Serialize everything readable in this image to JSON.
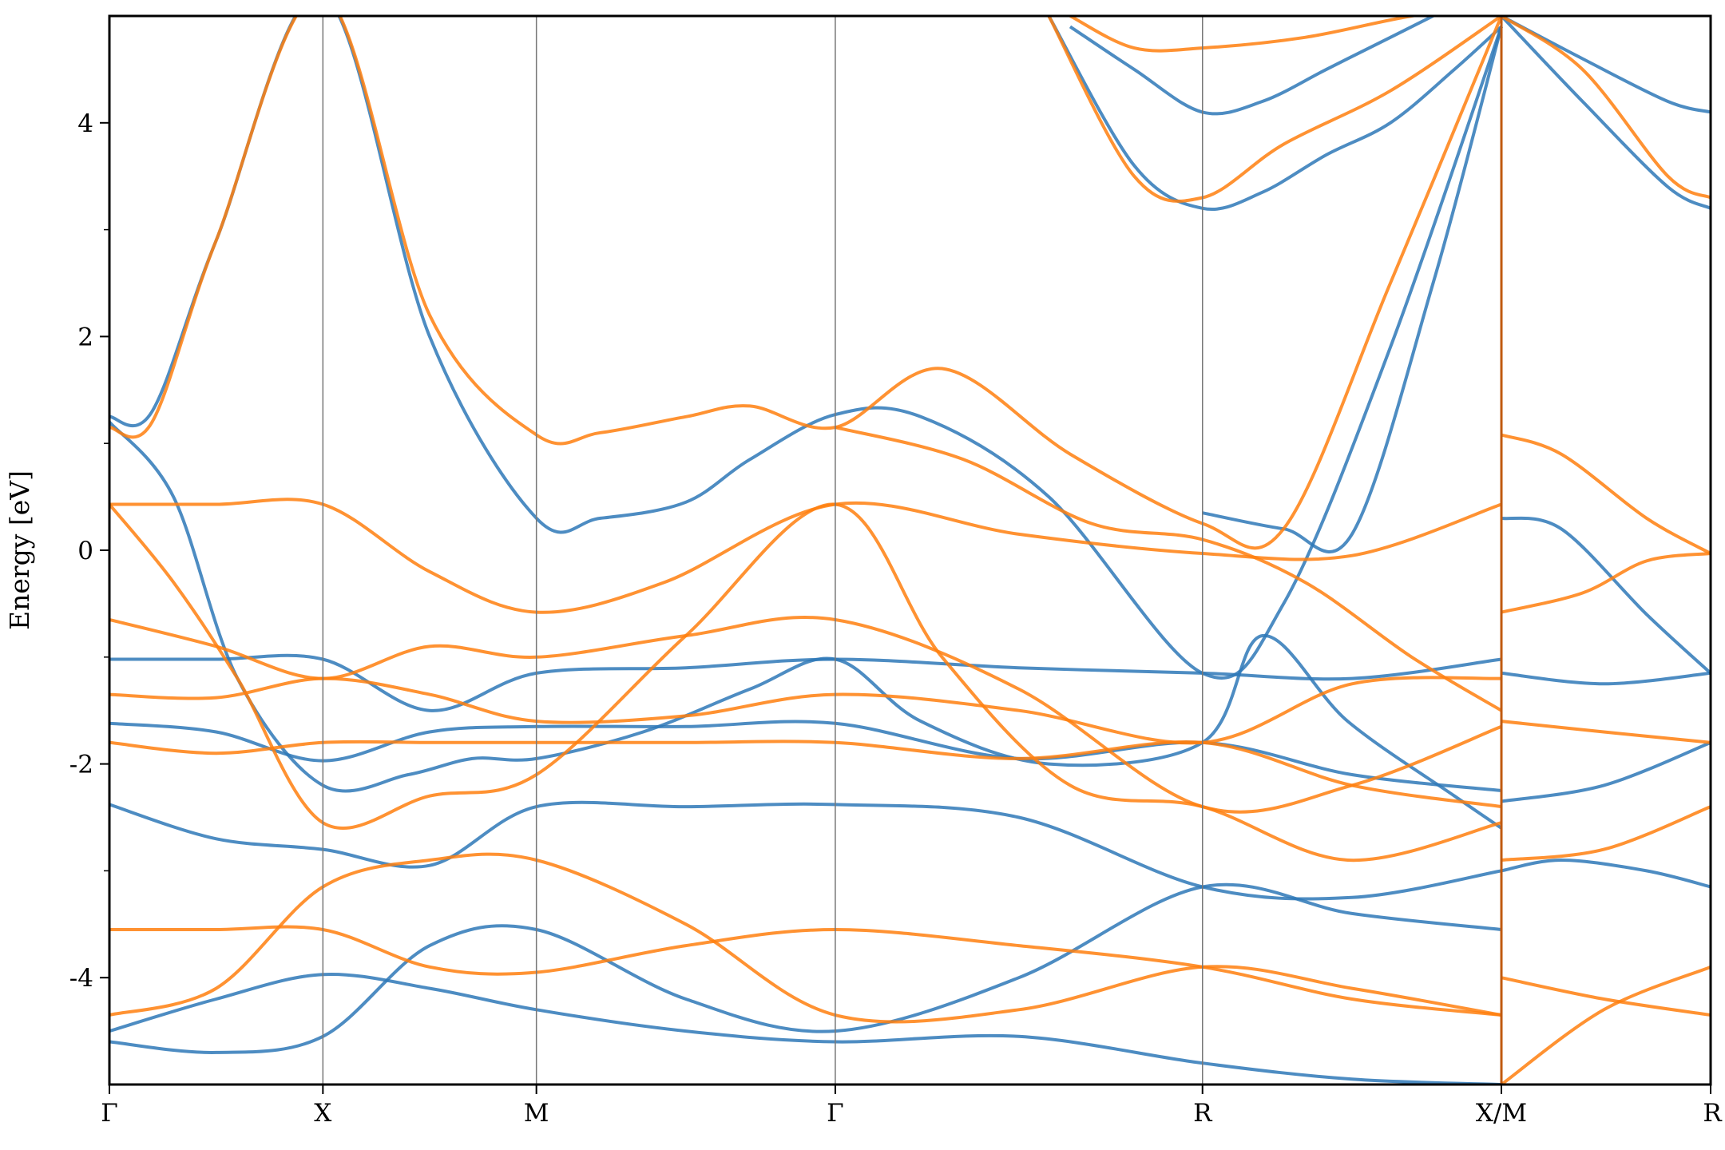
{
  "chart_data": {
    "type": "line",
    "title": "",
    "xlabel": "",
    "ylabel": "Energy [eV]",
    "ylim": [
      -5,
      5
    ],
    "xlim": [
      0,
      7.5
    ],
    "y_ticks": [
      -4,
      -2,
      0,
      2,
      4
    ],
    "y_tick_labels": [
      "-4",
      "-2",
      "0",
      "2",
      "4"
    ],
    "y_minor_ticks": [
      -3,
      -1,
      1,
      3
    ],
    "k_points": [
      {
        "label": "Γ",
        "x": 0.0
      },
      {
        "label": "X",
        "x": 1.0
      },
      {
        "label": "M",
        "x": 2.0
      },
      {
        "label": "Γ",
        "x": 3.4
      },
      {
        "label": "R",
        "x": 5.12
      },
      {
        "label": "X/M",
        "x": 6.52
      },
      {
        "label": "R",
        "x": 7.5
      }
    ],
    "grid": false,
    "legend": "none",
    "colors": {
      "blue": "#2e78b7",
      "orange": "#ff7f0e"
    },
    "series": [
      {
        "color": "blue",
        "x": [
          0,
          0.5,
          1,
          1.5,
          2,
          2.7,
          3.4,
          4.26,
          5.12,
          5.82,
          6.52
        ],
        "y": [
          -2.38,
          -2.7,
          -2.8,
          -2.95,
          -2.4,
          -2.4,
          -2.38,
          -2.5,
          -3.15,
          -3.25,
          -3.0
        ]
      },
      {
        "color": "blue",
        "x": [
          0,
          0.5,
          1,
          1.5,
          2,
          2.7,
          3.4,
          4.26,
          5.12,
          5.82,
          6.52
        ],
        "y": [
          -1.02,
          -1.02,
          -1.02,
          -1.5,
          -1.15,
          -1.1,
          -1.02,
          -1.1,
          -1.15,
          -1.2,
          -1.02
        ]
      },
      {
        "color": "blue",
        "x": [
          0,
          0.5,
          1,
          1.5,
          2,
          2.7,
          3.4,
          4.26,
          5.12,
          5.82,
          6.52
        ],
        "y": [
          -1.62,
          -1.7,
          -1.97,
          -1.7,
          -1.65,
          -1.65,
          -1.62,
          -1.95,
          -1.8,
          -2.1,
          -2.25
        ]
      },
      {
        "color": "blue",
        "x": [
          0,
          0.5,
          1,
          1.5,
          2,
          2.7,
          3.4,
          4.26,
          5.12,
          5.82,
          6.52
        ],
        "y": [
          -4.5,
          -4.2,
          -3.97,
          -4.1,
          -4.3,
          -4.5,
          -4.6,
          -4.55,
          -4.8,
          -4.95,
          -5.0
        ]
      },
      {
        "color": "blue",
        "x": [
          0,
          0.5,
          1,
          1.5,
          2,
          2.7,
          3.4,
          4.26,
          5.12,
          5.82,
          6.52
        ],
        "y": [
          -4.6,
          -4.7,
          -4.55,
          -3.7,
          -3.55,
          -4.2,
          -4.5,
          -4.0,
          -3.15,
          -3.4,
          -3.55
        ]
      },
      {
        "color": "blue",
        "x": [
          0,
          0.2,
          0.5,
          1,
          1.5,
          2,
          2.3,
          2.7,
          3.0,
          3.4,
          3.8,
          4.4,
          5.12,
          5.5,
          6.0,
          6.52
        ],
        "y": [
          1.25,
          1.3,
          2.9,
          5.2,
          2.0,
          0.3,
          0.3,
          0.45,
          0.85,
          1.27,
          1.25,
          0.5,
          -1.15,
          -0.5,
          1.9,
          4.9
        ]
      },
      {
        "color": "blue",
        "x": [
          0,
          0.3,
          0.6,
          1,
          1.4,
          1.7,
          2,
          2.5,
          3.0,
          3.4,
          3.8,
          4.4,
          5.12,
          5.4,
          5.8,
          6.3,
          6.52
        ],
        "y": [
          1.2,
          0.5,
          -1.2,
          -2.2,
          -2.1,
          -1.95,
          -1.95,
          -1.7,
          -1.3,
          -1.02,
          -1.6,
          -2.0,
          -1.8,
          -0.8,
          -1.6,
          -2.3,
          -2.6
        ]
      },
      {
        "color": "blue",
        "x": [
          5.12,
          5.5,
          5.82,
          6.2,
          6.52
        ],
        "y": [
          0.35,
          0.2,
          0.15,
          2.5,
          4.9
        ]
      },
      {
        "color": "blue",
        "x": [
          4.5,
          4.8,
          5.12,
          5.4,
          5.7,
          6.0,
          6.2
        ],
        "y": [
          4.9,
          4.5,
          4.1,
          4.2,
          4.5,
          4.8,
          5.0
        ]
      },
      {
        "color": "blue",
        "x": [
          4.4,
          4.8,
          5.12,
          5.4,
          5.7,
          6.0,
          6.3,
          6.52
        ],
        "y": [
          5.0,
          3.6,
          3.2,
          3.35,
          3.7,
          4.0,
          4.5,
          4.9
        ]
      },
      {
        "color": "blue",
        "x": [
          6.52,
          6.8,
          7.2,
          7.5
        ],
        "y": [
          0.3,
          0.2,
          -0.6,
          -1.15
        ]
      },
      {
        "color": "blue",
        "x": [
          6.52,
          6.8,
          7.2,
          7.5
        ],
        "y": [
          -3.0,
          -2.9,
          -3.0,
          -3.15
        ]
      },
      {
        "color": "blue",
        "x": [
          6.52,
          7.0,
          7.5
        ],
        "y": [
          -2.35,
          -2.2,
          -1.8
        ]
      },
      {
        "color": "blue",
        "x": [
          6.52,
          7.0,
          7.5
        ],
        "y": [
          -1.15,
          -1.25,
          -1.15
        ]
      },
      {
        "color": "blue",
        "x": [
          6.52,
          6.9,
          7.3,
          7.5
        ],
        "y": [
          5.0,
          4.6,
          4.2,
          4.1
        ]
      },
      {
        "color": "blue",
        "x": [
          6.52,
          6.9,
          7.3,
          7.5
        ],
        "y": [
          5.0,
          4.2,
          3.4,
          3.2
        ]
      },
      {
        "color": "orange",
        "x": [
          0,
          0.5,
          1,
          1.5,
          2,
          2.7,
          3.4,
          4.26,
          5.12,
          5.82,
          6.52
        ],
        "y": [
          -1.35,
          -1.38,
          -1.2,
          -1.35,
          -1.6,
          -1.55,
          -1.35,
          -1.5,
          -1.8,
          -1.25,
          -1.2
        ]
      },
      {
        "color": "orange",
        "x": [
          0,
          0.5,
          1,
          1.5,
          2,
          2.7,
          3.4,
          4.26,
          5.12,
          5.82,
          6.52
        ],
        "y": [
          -1.8,
          -1.9,
          -1.8,
          -1.8,
          -1.8,
          -1.8,
          -1.8,
          -1.95,
          -1.8,
          -2.2,
          -2.4
        ]
      },
      {
        "color": "orange",
        "x": [
          0,
          0.5,
          1,
          1.5,
          2,
          2.7,
          3.4,
          4.26,
          5.12,
          5.82,
          6.52
        ],
        "y": [
          -3.55,
          -3.55,
          -3.55,
          -3.9,
          -3.95,
          -3.7,
          -3.55,
          -3.7,
          -3.9,
          -4.2,
          -4.35
        ]
      },
      {
        "color": "orange",
        "x": [
          0,
          0.5,
          1,
          1.5,
          2,
          2.7,
          3.4,
          4.26,
          5.12,
          5.82,
          6.52
        ],
        "y": [
          -4.35,
          -4.1,
          -3.15,
          -2.9,
          -2.9,
          -3.5,
          -4.35,
          -4.3,
          -3.9,
          -4.1,
          -4.35
        ]
      },
      {
        "color": "orange",
        "x": [
          0,
          0.5,
          1,
          1.5,
          2,
          2.7,
          3.4,
          4.26,
          5.12,
          5.82,
          6.52
        ],
        "y": [
          -0.65,
          -0.9,
          -1.2,
          -0.9,
          -1.0,
          -0.8,
          -0.65,
          -1.3,
          -2.4,
          -2.2,
          -1.65
        ]
      },
      {
        "color": "orange",
        "x": [
          0,
          0.5,
          1,
          1.5,
          2,
          2.6,
          3.4,
          4.26,
          5.12,
          5.82,
          6.52
        ],
        "y": [
          0.43,
          0.43,
          0.43,
          -0.2,
          -0.58,
          -0.3,
          0.43,
          0.15,
          -0.03,
          -0.05,
          0.43
        ]
      },
      {
        "color": "orange",
        "x": [
          0,
          0.3,
          0.6,
          1,
          1.5,
          2,
          2.7,
          3.4,
          3.9,
          4.5,
          5.12,
          5.8,
          6.52
        ],
        "y": [
          0.43,
          -0.3,
          -1.2,
          -2.55,
          -2.3,
          -2.1,
          -0.8,
          0.43,
          -1.0,
          -2.2,
          -2.4,
          -2.9,
          -2.55
        ]
      },
      {
        "color": "orange",
        "x": [
          0,
          0.2,
          0.5,
          1,
          1.5,
          2,
          2.3,
          2.7,
          3.0,
          3.4,
          3.9,
          4.5,
          5.12,
          5.5,
          6.0,
          6.52
        ],
        "y": [
          1.15,
          1.2,
          2.9,
          5.2,
          2.2,
          1.08,
          1.1,
          1.25,
          1.35,
          1.15,
          1.7,
          0.9,
          0.25,
          0.2,
          2.5,
          5.0
        ]
      },
      {
        "color": "orange",
        "x": [
          3.4,
          4.0,
          4.6,
          5.12,
          5.6,
          6.1,
          6.52
        ],
        "y": [
          1.15,
          0.85,
          0.25,
          0.1,
          -0.3,
          -1.0,
          -1.5
        ]
      },
      {
        "color": "orange",
        "x": [
          4.5,
          4.8,
          5.12,
          5.6,
          6.1,
          6.52
        ],
        "y": [
          5.0,
          4.7,
          4.7,
          4.8,
          5.0,
          5.1
        ]
      },
      {
        "color": "orange",
        "x": [
          4.4,
          4.8,
          5.12,
          5.5,
          6.0,
          6.52
        ],
        "y": [
          5.0,
          3.5,
          3.3,
          3.8,
          4.3,
          5.0
        ]
      },
      {
        "color": "orange",
        "x": [
          6.52,
          6.8,
          7.2,
          7.5
        ],
        "y": [
          1.08,
          0.9,
          0.3,
          -0.03
        ]
      },
      {
        "color": "orange",
        "x": [
          6.52,
          6.9,
          7.2,
          7.5
        ],
        "y": [
          -0.58,
          -0.4,
          -0.1,
          -0.03
        ]
      },
      {
        "color": "orange",
        "x": [
          6.52,
          7.0,
          7.5
        ],
        "y": [
          -2.9,
          -2.8,
          -2.4
        ]
      },
      {
        "color": "orange",
        "x": [
          6.52,
          7.0,
          7.5
        ],
        "y": [
          -1.6,
          -1.7,
          -1.8
        ]
      },
      {
        "color": "orange",
        "x": [
          6.52,
          6.9,
          7.3,
          7.5
        ],
        "y": [
          5.0,
          4.5,
          3.5,
          3.3
        ]
      },
      {
        "color": "orange",
        "x": [
          6.52,
          7.0,
          7.5
        ],
        "y": [
          -5.0,
          -4.3,
          -3.9
        ]
      },
      {
        "color": "orange",
        "x": [
          6.52,
          7.0,
          7.5
        ],
        "y": [
          -4.0,
          -4.2,
          -4.35
        ]
      }
    ]
  }
}
